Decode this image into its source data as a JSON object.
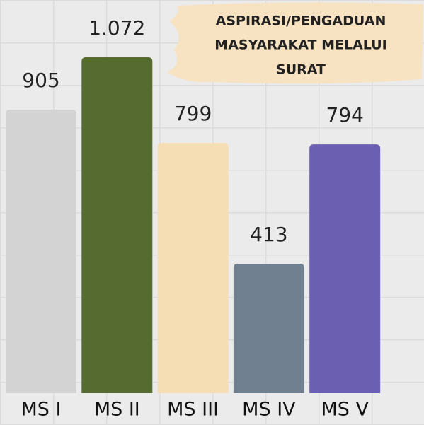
{
  "chart_data": {
    "type": "bar",
    "title": [
      "ASPIRASI/PENGADUAN",
      "MASYARAKAT MELALUI",
      "SURAT"
    ],
    "categories": [
      "MS I",
      "MS II",
      "MS III",
      "MS IV",
      "MS V"
    ],
    "values": [
      905,
      1072,
      799,
      413,
      794
    ],
    "value_labels": [
      "905",
      "1.072",
      "799",
      "413",
      "794"
    ],
    "colors": [
      "#d3d3d3",
      "#556b2f",
      "#f5deb3",
      "#708090",
      "#6a5fb0"
    ]
  }
}
